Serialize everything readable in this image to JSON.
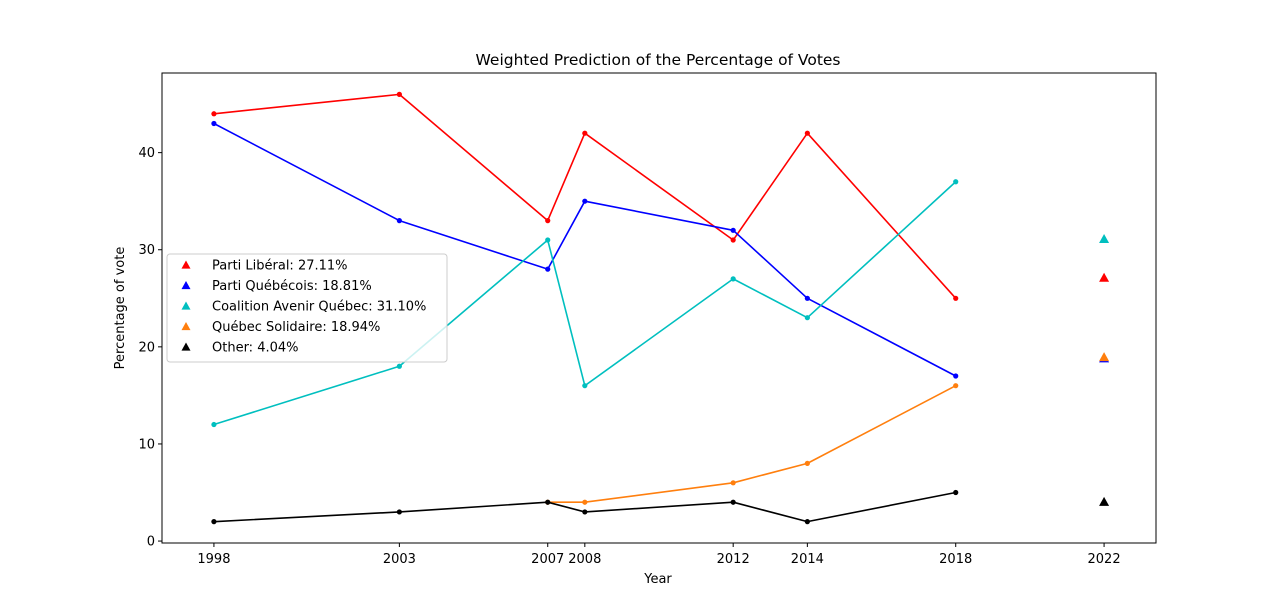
{
  "chart_data": {
    "type": "line",
    "title": "Weighted Prediction of the Percentage of Votes",
    "xlabel": "Year",
    "ylabel": "Percentage of vote",
    "xlim": [
      1996.6,
      2023.4
    ],
    "ylim": [
      -0.2,
      48.2
    ],
    "xticks": [
      1998,
      2003,
      2007,
      2008,
      2012,
      2014,
      2018,
      2022
    ],
    "yticks": [
      0,
      10,
      20,
      30,
      40
    ],
    "grid": false,
    "legend_position": "center-left",
    "series": [
      {
        "name": "Parti Libéral",
        "color": "#ff0000",
        "x": [
          1998,
          2003,
          2007,
          2008,
          2012,
          2014,
          2018
        ],
        "y": [
          44,
          46,
          33,
          42,
          31,
          42,
          25
        ],
        "prediction": {
          "x": 2022,
          "y": 27.11
        },
        "legend_label": "Parti Libéral: 27.11%"
      },
      {
        "name": "Parti Québécois",
        "color": "#0000ff",
        "x": [
          1998,
          2003,
          2007,
          2008,
          2012,
          2014,
          2018
        ],
        "y": [
          43,
          33,
          28,
          35,
          32,
          25,
          17
        ],
        "prediction": {
          "x": 2022,
          "y": 18.81
        },
        "legend_label": "Parti Québécois: 18.81%"
      },
      {
        "name": "Coalition Avenir Québec",
        "color": "#00bfbf",
        "x": [
          1998,
          2003,
          2007,
          2008,
          2012,
          2014,
          2018
        ],
        "y": [
          12,
          18,
          31,
          16,
          27,
          23,
          37
        ],
        "prediction": {
          "x": 2022,
          "y": 31.1
        },
        "legend_label": "Coalition Avenir Québec: 31.10%"
      },
      {
        "name": "Québec Solidaire",
        "color": "#ff7f0e",
        "x": [
          2007,
          2008,
          2012,
          2014,
          2018
        ],
        "y": [
          4,
          4,
          6,
          8,
          16
        ],
        "prediction": {
          "x": 2022,
          "y": 18.94
        },
        "legend_label": "Québec Solidaire: 18.94%"
      },
      {
        "name": "Other",
        "color": "#000000",
        "x": [
          1998,
          2003,
          2007,
          2008,
          2012,
          2014,
          2018
        ],
        "y": [
          2,
          3,
          4,
          3,
          4,
          2,
          5
        ],
        "prediction": {
          "x": 2022,
          "y": 4.04
        },
        "legend_label": "Other: 4.04%"
      }
    ]
  }
}
